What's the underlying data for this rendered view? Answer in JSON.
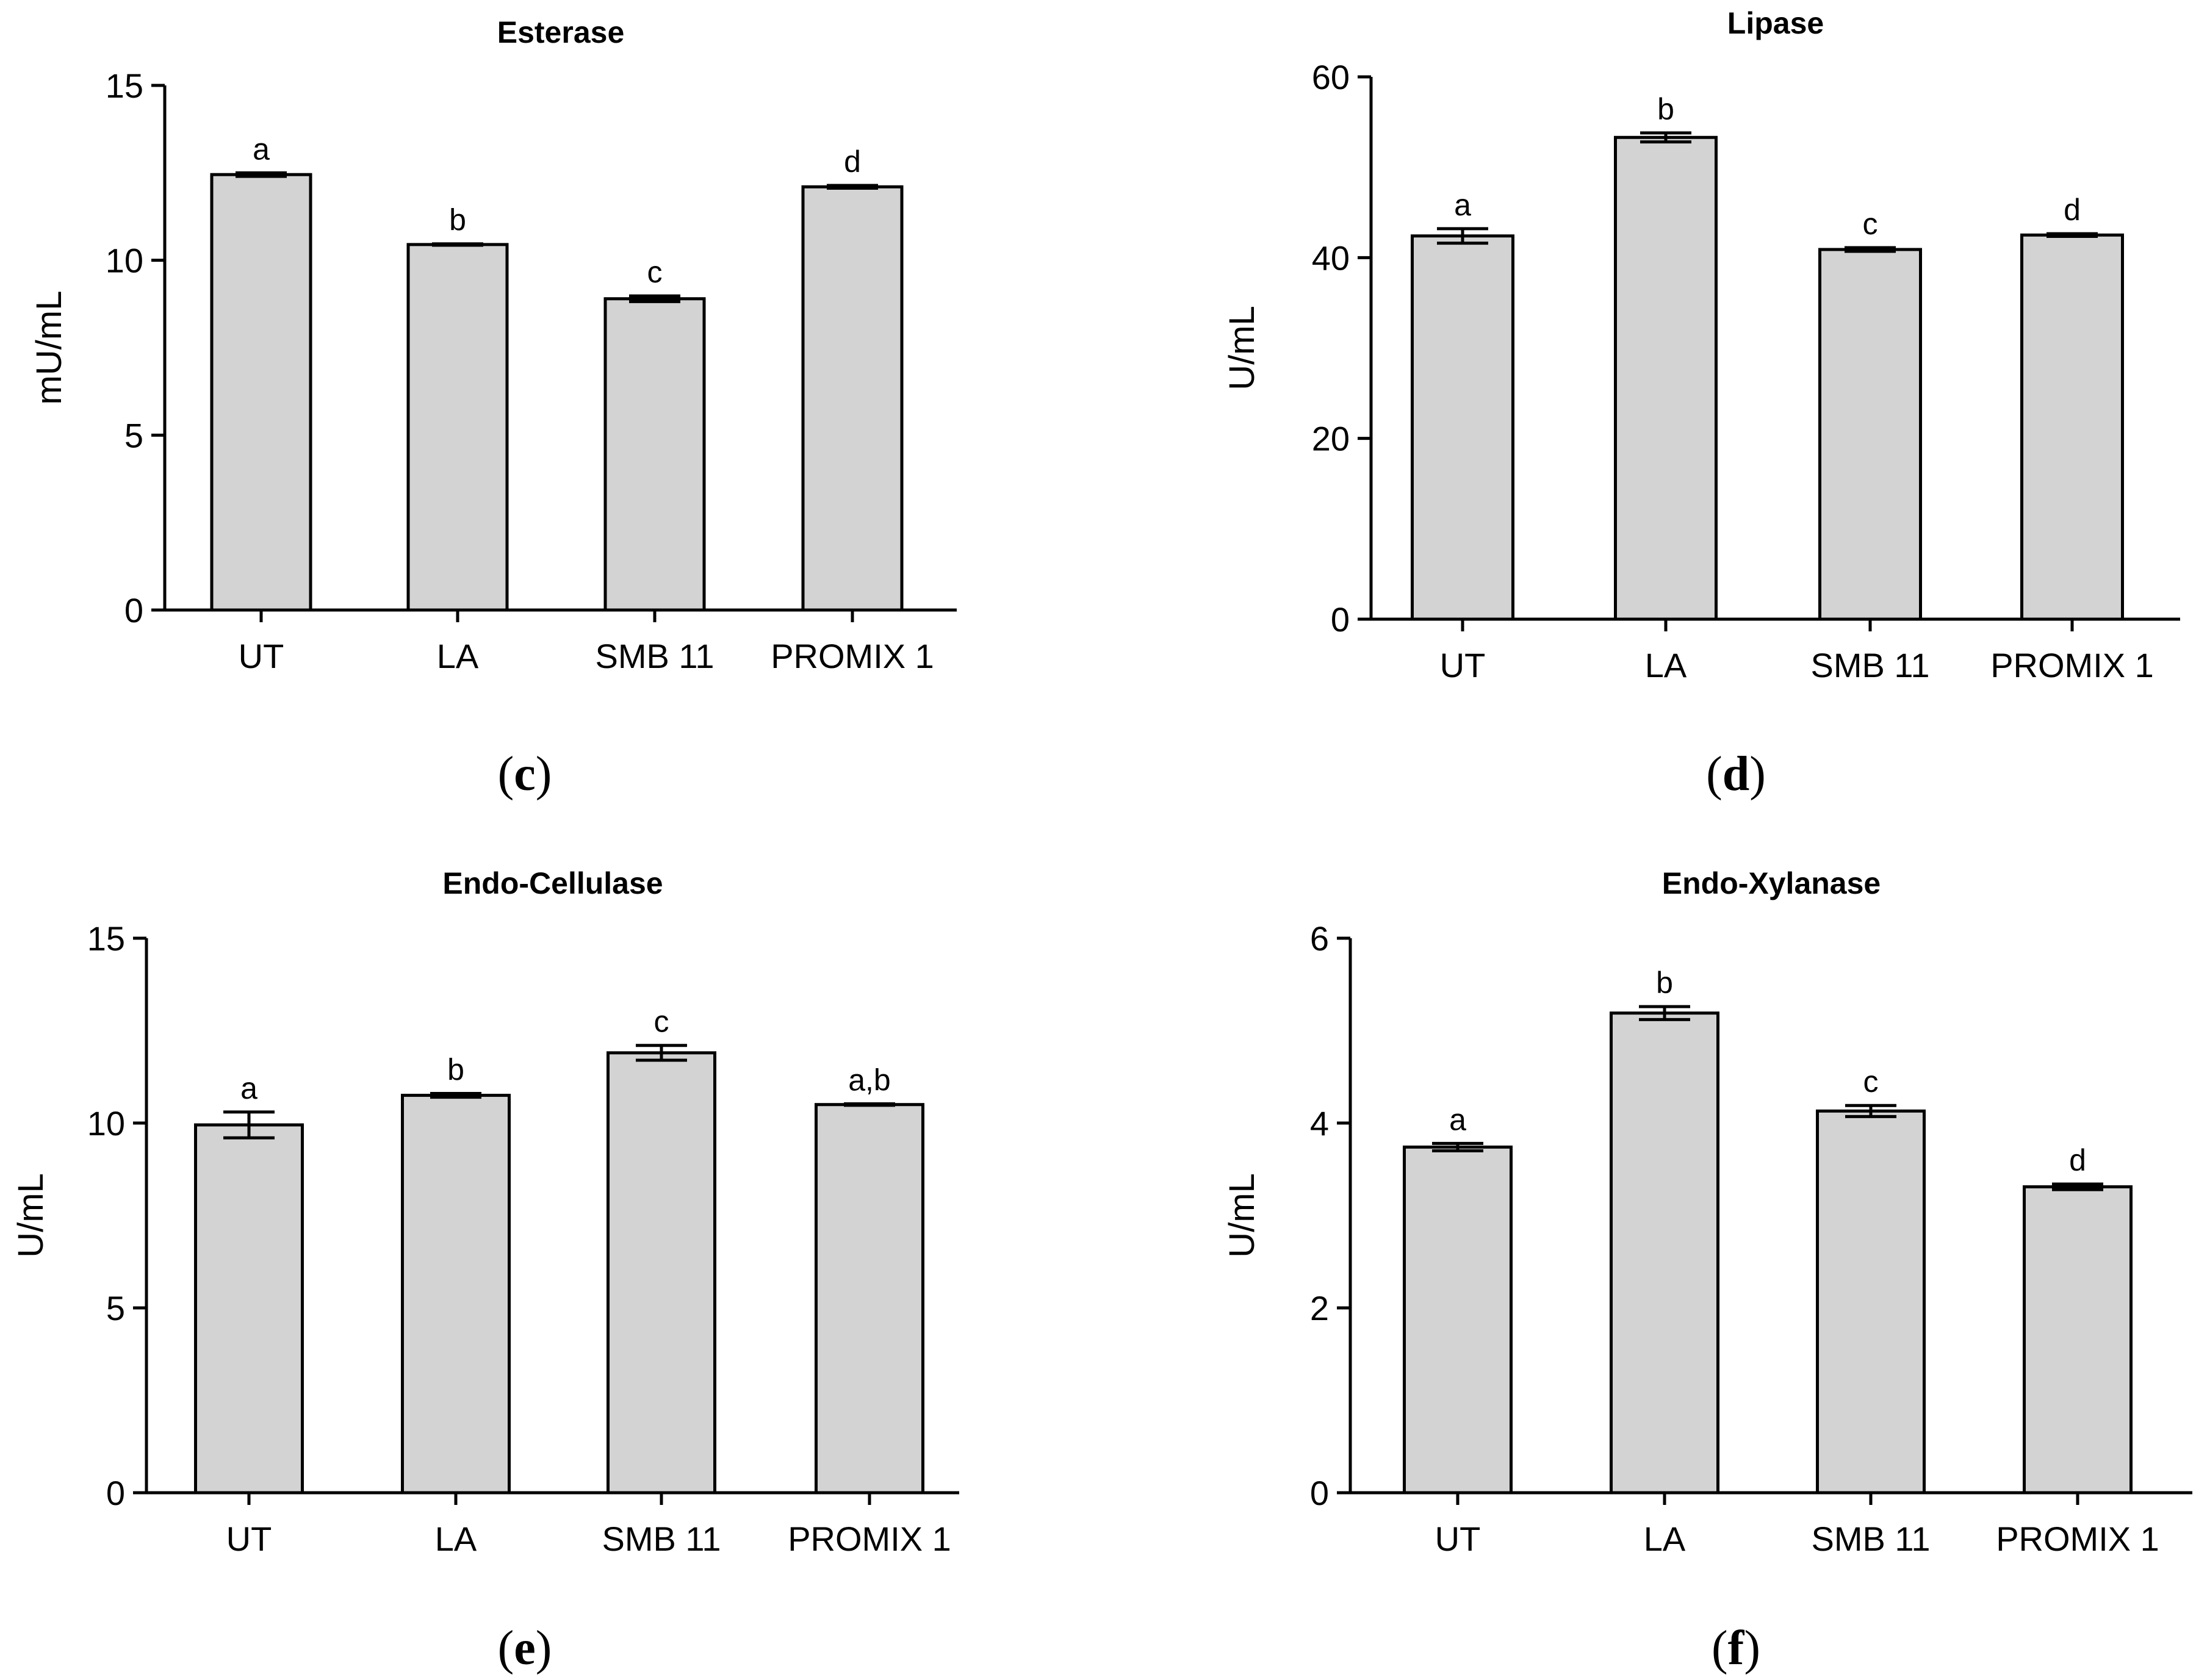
{
  "chart_data": [
    {
      "id": "c",
      "type": "bar",
      "title": "Esterase",
      "panel_label": "c",
      "ylabel": "mU/mL",
      "xlabel": "",
      "ylim": [
        0,
        15
      ],
      "yticks": [
        0,
        5,
        10,
        15
      ],
      "categories": [
        "UT",
        "LA",
        "SMB 11",
        "PROMIX 1"
      ],
      "values": [
        12.45,
        10.45,
        8.9,
        12.1
      ],
      "errors": [
        0.05,
        0.02,
        0.08,
        0.04
      ],
      "significance": [
        "a",
        "b",
        "c",
        "d"
      ],
      "bar_color": "#d3d3d3"
    },
    {
      "id": "d",
      "type": "bar",
      "title": "Lipase",
      "panel_label": "d",
      "ylabel": "U/mL",
      "xlabel": "",
      "ylim": [
        0,
        60
      ],
      "yticks": [
        0,
        20,
        40,
        60
      ],
      "categories": [
        "UT",
        "LA",
        "SMB 11",
        "PROMIX 1"
      ],
      "values": [
        42.4,
        53.3,
        40.9,
        42.5
      ],
      "errors": [
        0.8,
        0.5,
        0.2,
        0.15
      ],
      "significance": [
        "a",
        "b",
        "c",
        "d"
      ],
      "bar_color": "#d3d3d3"
    },
    {
      "id": "e",
      "type": "bar",
      "title": "Endo-Cellulase",
      "panel_label": "e",
      "ylabel": "U/mL",
      "xlabel": "",
      "ylim": [
        0,
        15
      ],
      "yticks": [
        0,
        5,
        10,
        15
      ],
      "categories": [
        "UT",
        "LA",
        "SMB 11",
        "PROMIX 1"
      ],
      "values": [
        9.95,
        10.75,
        11.9,
        10.5
      ],
      "errors": [
        0.35,
        0.05,
        0.2,
        0.02
      ],
      "significance": [
        "a",
        "b",
        "c",
        "a,b"
      ],
      "bar_color": "#d3d3d3"
    },
    {
      "id": "f",
      "type": "bar",
      "title": "Endo-Xylanase",
      "panel_label": "f",
      "ylabel": "U/mL",
      "xlabel": "",
      "ylim": [
        0,
        6
      ],
      "yticks": [
        0,
        2,
        4,
        6
      ],
      "categories": [
        "UT",
        "LA",
        "SMB 11",
        "PROMIX 1"
      ],
      "values": [
        3.74,
        5.19,
        4.13,
        3.31
      ],
      "errors": [
        0.04,
        0.07,
        0.06,
        0.03
      ],
      "significance": [
        "a",
        "b",
        "c",
        "d"
      ],
      "bar_color": "#d3d3d3"
    }
  ]
}
